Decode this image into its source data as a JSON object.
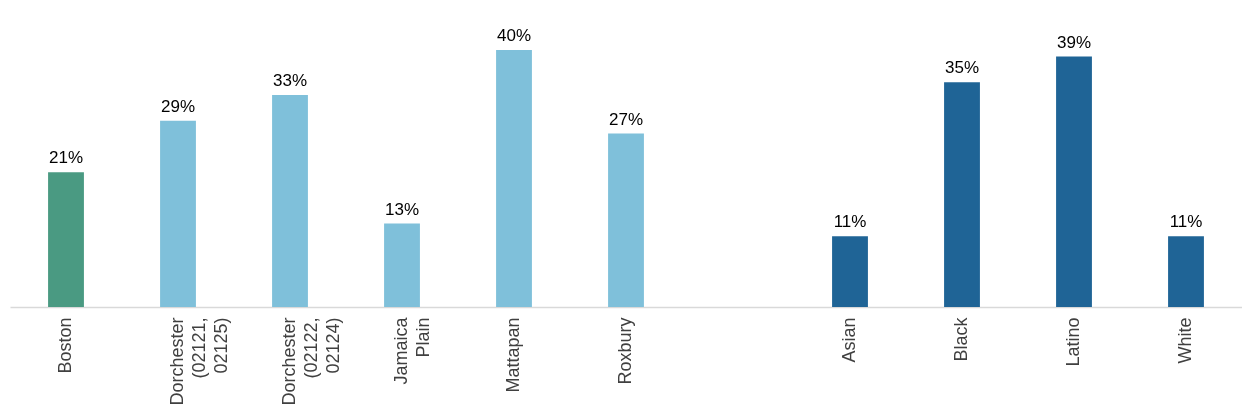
{
  "chart_data": {
    "type": "bar",
    "categories": [
      "Boston",
      "Dorchester (02121, 02125)",
      "Dorchester (02122, 02124)",
      "Jamaica Plain",
      "Mattapan",
      "Roxbury",
      null,
      "Asian",
      "Black",
      "Latino",
      "White"
    ],
    "values": [
      21,
      29,
      33,
      13,
      40,
      27,
      null,
      11,
      35,
      39,
      11
    ],
    "colors": [
      "#4a9a82",
      "#7fc0da",
      "#7fc0da",
      "#7fc0da",
      "#7fc0da",
      "#7fc0da",
      "#7fc0da",
      "#1f6496",
      "#1f6496",
      "#1f6496",
      "#1f6496"
    ],
    "value_labels": [
      "21%",
      "29%",
      "33%",
      "13%",
      "40%",
      "27%",
      null,
      "11%",
      "35%",
      "39%",
      "11%"
    ]
  }
}
